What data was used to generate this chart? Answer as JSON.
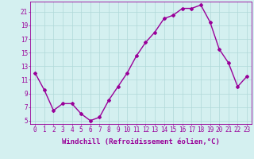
{
  "x": [
    0,
    1,
    2,
    3,
    4,
    5,
    6,
    7,
    8,
    9,
    10,
    11,
    12,
    13,
    14,
    15,
    16,
    17,
    18,
    19,
    20,
    21,
    22,
    23
  ],
  "y": [
    12,
    9.5,
    6.5,
    7.5,
    7.5,
    6.0,
    5.0,
    5.5,
    8.0,
    10.0,
    12.0,
    14.5,
    16.5,
    18.0,
    20.0,
    20.5,
    21.5,
    21.5,
    22.0,
    19.5,
    15.5,
    13.5,
    10.0,
    11.5
  ],
  "line_color": "#990099",
  "marker": "D",
  "marker_size": 2.0,
  "background_color": "#d4f0f0",
  "grid_color": "#b0d8d8",
  "tick_color": "#990099",
  "label_color": "#990099",
  "xlabel": "Windchill (Refroidissement éolien,°C)",
  "yticks": [
    5,
    7,
    9,
    11,
    13,
    15,
    17,
    19,
    21
  ],
  "xtick_labels": [
    "0",
    "1",
    "2",
    "3",
    "4",
    "5",
    "6",
    "7",
    "8",
    "9",
    "10",
    "11",
    "12",
    "13",
    "14",
    "15",
    "16",
    "17",
    "18",
    "19",
    "20",
    "21",
    "22",
    "23"
  ],
  "xlim": [
    -0.5,
    23.5
  ],
  "ylim": [
    4.5,
    22.5
  ],
  "xlabel_fontsize": 6.5,
  "tick_fontsize": 5.5,
  "linewidth": 1.0
}
